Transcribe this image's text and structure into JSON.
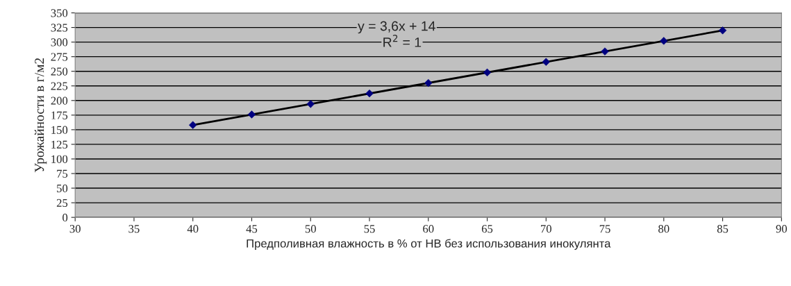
{
  "chart_data": {
    "type": "scatter",
    "xlabel": "Предполивная влажность в % от НВ без использования инокулянта",
    "ylabel": "Урожайности в г/м2",
    "x": [
      40,
      45,
      50,
      55,
      60,
      65,
      70,
      75,
      80,
      85
    ],
    "series": [
      {
        "color": "#000080",
        "marker": "diamond",
        "values": [
          158,
          176,
          194,
          212,
          230,
          248,
          266,
          284,
          302,
          320
        ]
      },
      {
        "type": "line",
        "color": "#000000",
        "x": [
          40,
          85
        ],
        "values": [
          158,
          320
        ],
        "marker": "none",
        "line_style": "solid"
      }
    ],
    "annotations": [
      "y = 3,6x + 14",
      "R$^{2}$ = 1"
    ],
    "xlim": [
      30,
      90
    ],
    "xticks": [
      30,
      35,
      40,
      45,
      50,
      55,
      60,
      65,
      70,
      75,
      80,
      85,
      90
    ],
    "ylim": [
      0,
      350
    ],
    "yticks": [
      0,
      25,
      50,
      75,
      100,
      125,
      150,
      175,
      200,
      225,
      250,
      275,
      300,
      325,
      350
    ],
    "grid": "y"
  }
}
